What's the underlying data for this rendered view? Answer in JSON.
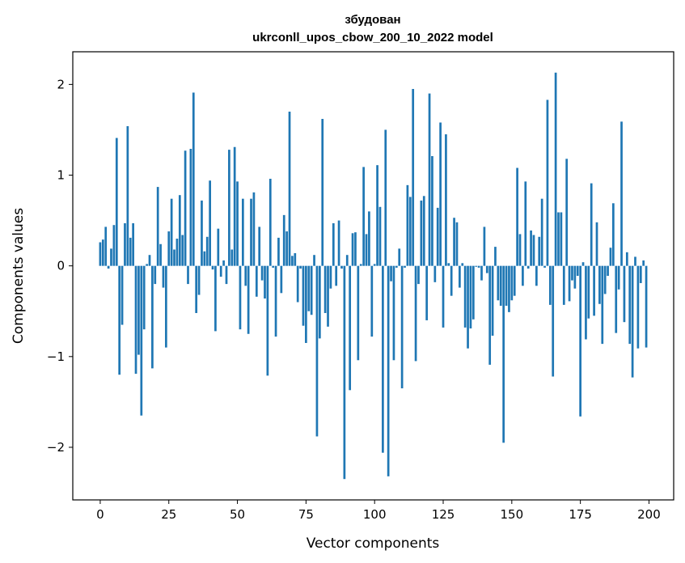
{
  "chart_data": {
    "type": "bar",
    "title": "збудован",
    "subtitle": "ukrconll_upos_cbow_200_10_2022 model",
    "xlabel": "Vector components",
    "ylabel": "Components values",
    "xlim": [
      -10,
      209
    ],
    "ylim": [
      -2.58,
      2.36
    ],
    "xticks": [
      0,
      25,
      50,
      75,
      100,
      125,
      150,
      175,
      200
    ],
    "xtick_labels": [
      "0",
      "25",
      "50",
      "75",
      "100",
      "125",
      "150",
      "175",
      "200"
    ],
    "yticks": [
      -2,
      -1,
      0,
      1,
      2
    ],
    "ytick_labels": [
      "−2",
      "−1",
      "0",
      "1",
      "2"
    ],
    "bar_color": "#1f77b4",
    "values": [
      0.26,
      0.29,
      0.43,
      -0.03,
      0.19,
      0.45,
      1.41,
      -1.2,
      -0.65,
      0.47,
      1.54,
      0.31,
      0.47,
      -1.19,
      -0.98,
      -1.65,
      -0.7,
      0.02,
      0.12,
      -1.13,
      -0.2,
      0.87,
      0.24,
      -0.24,
      -0.9,
      0.38,
      0.74,
      0.18,
      0.3,
      0.78,
      0.34,
      1.27,
      -0.2,
      1.29,
      1.91,
      -0.52,
      -0.32,
      0.72,
      0.16,
      0.32,
      0.94,
      -0.04,
      -0.72,
      0.41,
      -0.12,
      0.06,
      -0.2,
      1.28,
      0.18,
      1.31,
      0.93,
      -0.7,
      0.74,
      -0.22,
      -0.75,
      0.74,
      0.81,
      -0.34,
      0.43,
      -0.16,
      -0.36,
      -1.21,
      0.96,
      -0.02,
      -0.78,
      0.31,
      -0.3,
      0.56,
      0.38,
      1.7,
      0.11,
      0.14,
      -0.4,
      -0.03,
      -0.66,
      -0.85,
      -0.5,
      -0.54,
      0.12,
      -1.88,
      -0.8,
      1.62,
      -0.52,
      -0.67,
      -0.25,
      0.47,
      -0.22,
      0.5,
      -0.03,
      -2.35,
      0.12,
      -1.37,
      0.36,
      0.37,
      -1.04,
      0.02,
      1.09,
      0.35,
      0.6,
      -0.78,
      0.02,
      1.11,
      0.65,
      -2.06,
      1.5,
      -2.32,
      -0.17,
      -1.04,
      -0.02,
      0.19,
      -1.35,
      -0.02,
      0.89,
      0.76,
      1.95,
      -1.05,
      -0.2,
      0.72,
      0.77,
      -0.6,
      1.9,
      1.21,
      -0.18,
      0.64,
      1.58,
      -0.68,
      1.45,
      0.03,
      -0.33,
      0.53,
      0.48,
      -0.24,
      0.03,
      -0.68,
      -0.91,
      -0.69,
      -0.59,
      -0.01,
      -0.02,
      -0.16,
      0.43,
      -0.08,
      -1.09,
      -0.77,
      0.21,
      -0.38,
      -0.44,
      -1.95,
      -0.44,
      -0.51,
      -0.38,
      -0.33,
      1.08,
      0.35,
      -0.22,
      0.93,
      -0.03,
      0.39,
      0.34,
      -0.22,
      0.32,
      0.74,
      -0.02,
      1.83,
      -0.43,
      -1.22,
      2.13,
      0.59,
      0.59,
      -0.43,
      1.18,
      -0.39,
      -0.16,
      -0.25,
      -0.11,
      -1.66,
      0.04,
      -0.81,
      -0.58,
      0.91,
      -0.55,
      0.48,
      -0.42,
      -0.86,
      -0.31,
      -0.11,
      0.2,
      0.69,
      -0.74,
      -0.26,
      1.59,
      -0.62,
      0.15,
      -0.86,
      -1.23,
      0.1,
      -0.91,
      -0.19,
      0.06,
      -0.9
    ]
  }
}
